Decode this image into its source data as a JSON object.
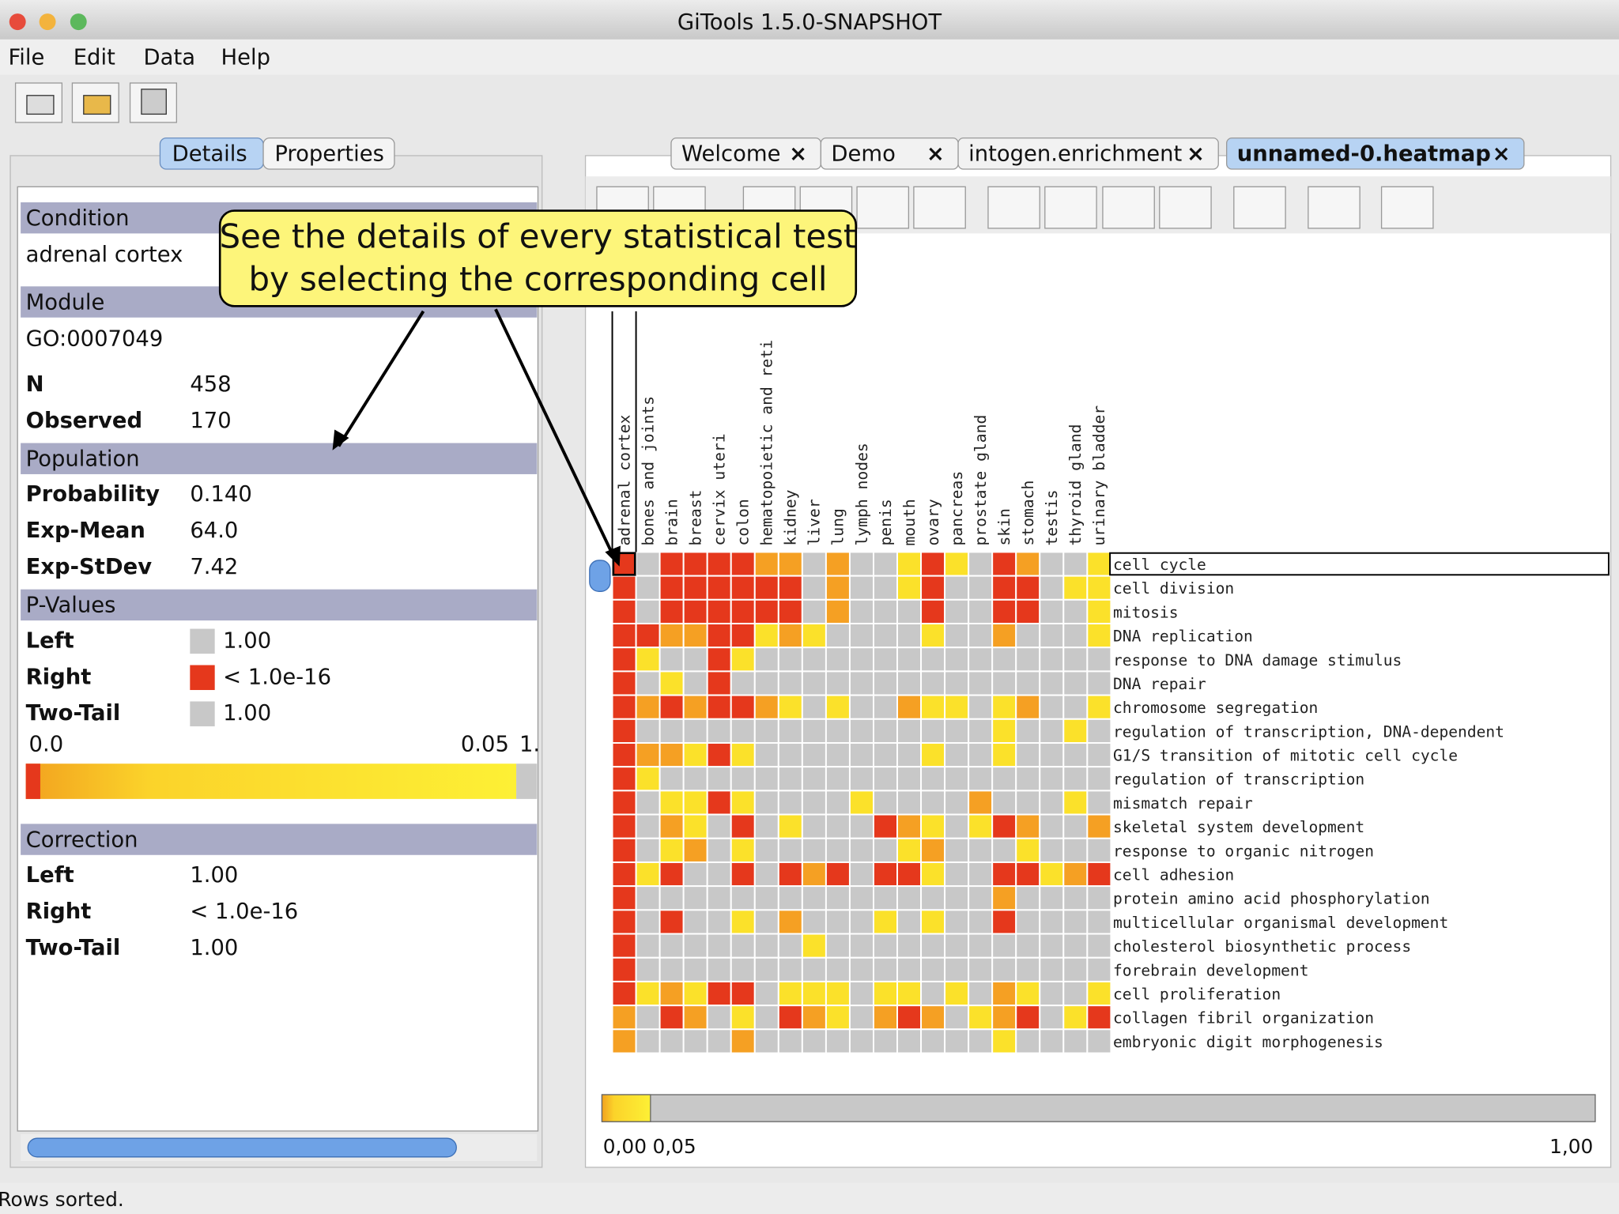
{
  "window": {
    "title": "GiTools 1.5.0-SNAPSHOT",
    "menu": [
      "File",
      "Edit",
      "Data",
      "Help"
    ],
    "status": "Rows sorted."
  },
  "sidebar": {
    "tabs": [
      "Details",
      "Properties"
    ],
    "sections": [
      {
        "title": "Condition",
        "text": "adrenal cortex",
        "rows": []
      },
      {
        "title": "Module",
        "text": "GO:0007049",
        "rows": [
          [
            "N",
            "458"
          ],
          [
            "Observed",
            "170"
          ]
        ]
      },
      {
        "title": "Population",
        "rows": [
          [
            "Probability",
            "0.140"
          ],
          [
            "Exp-Mean",
            "64.0"
          ],
          [
            "Exp-StDev",
            "7.42"
          ]
        ]
      },
      {
        "title": "P-Values",
        "rows": [
          [
            "Left",
            "1.00"
          ],
          [
            "Right",
            "< 1.0e-16"
          ],
          [
            "Two-Tail",
            "1.00"
          ]
        ],
        "swatches": [
          0,
          3,
          0
        ],
        "scale_labels": [
          "0.0",
          "0.05",
          "1."
        ]
      },
      {
        "title": "Correction",
        "rows": [
          [
            "Left",
            "1.00"
          ],
          [
            "Right",
            "< 1.0e-16"
          ],
          [
            "Two-Tail",
            "1.00"
          ]
        ]
      }
    ]
  },
  "editor_tabs": [
    "Welcome",
    "Demo",
    "intogen.enrichment",
    "unnamed-0.heatmap"
  ],
  "callout": [
    "See the details of every statistical test",
    "by selecting the corresponding cell"
  ],
  "heatmap": {
    "level_colors": [
      "#c8c8c8",
      "#fbe12a",
      "#f5a023",
      "#e5381c"
    ],
    "columns": [
      "adrenal cortex",
      "bones and joints",
      "brain",
      "breast",
      "cervix uteri",
      "colon",
      "hematopoietic and reti",
      "kidney",
      "liver",
      "lung",
      "lymph nodes",
      "penis",
      "mouth",
      "ovary",
      "pancreas",
      "prostate gland",
      "skin",
      "stomach",
      "testis",
      "thyroid gland",
      "urinary bladder"
    ],
    "rows": [
      "cell cycle",
      "cell division",
      "mitosis",
      "DNA replication",
      "response to DNA damage stimulus",
      "DNA repair",
      "chromosome segregation",
      "regulation of transcription, DNA-dependent",
      "G1/S transition of mitotic cell cycle",
      "regulation of transcription",
      "mismatch repair",
      "skeletal system development",
      "response to organic nitrogen",
      "cell adhesion",
      "protein amino acid phosphorylation",
      "multicellular organismal development",
      "cholesterol biosynthetic process",
      "forebrain development",
      "cell proliferation",
      "collagen fibril organization",
      "embryonic digit morphogenesis"
    ],
    "cells": [
      [
        3,
        0,
        3,
        3,
        3,
        3,
        2,
        2,
        0,
        2,
        0,
        0,
        1,
        3,
        1,
        0,
        3,
        2,
        0,
        0,
        1
      ],
      [
        3,
        0,
        3,
        3,
        3,
        3,
        3,
        3,
        0,
        2,
        0,
        0,
        1,
        3,
        0,
        0,
        3,
        3,
        0,
        1,
        1
      ],
      [
        3,
        0,
        3,
        3,
        3,
        3,
        3,
        3,
        0,
        2,
        0,
        0,
        0,
        3,
        0,
        0,
        3,
        3,
        0,
        0,
        1
      ],
      [
        3,
        3,
        2,
        2,
        3,
        3,
        1,
        2,
        1,
        0,
        0,
        0,
        0,
        1,
        0,
        0,
        2,
        0,
        0,
        0,
        1
      ],
      [
        3,
        1,
        0,
        0,
        3,
        1,
        0,
        0,
        0,
        0,
        0,
        0,
        0,
        0,
        0,
        0,
        0,
        0,
        0,
        0,
        0
      ],
      [
        3,
        0,
        1,
        0,
        3,
        0,
        0,
        0,
        0,
        0,
        0,
        0,
        0,
        0,
        0,
        0,
        0,
        0,
        0,
        0,
        0
      ],
      [
        3,
        2,
        3,
        2,
        3,
        3,
        2,
        1,
        0,
        1,
        0,
        0,
        2,
        1,
        1,
        0,
        1,
        2,
        0,
        0,
        1
      ],
      [
        3,
        0,
        0,
        0,
        0,
        0,
        0,
        0,
        0,
        0,
        0,
        0,
        0,
        0,
        0,
        0,
        1,
        0,
        0,
        1,
        0
      ],
      [
        3,
        2,
        2,
        1,
        3,
        1,
        0,
        0,
        0,
        0,
        0,
        0,
        0,
        1,
        0,
        0,
        1,
        0,
        0,
        0,
        0
      ],
      [
        3,
        1,
        0,
        0,
        0,
        0,
        0,
        0,
        0,
        0,
        0,
        0,
        0,
        0,
        0,
        0,
        0,
        0,
        0,
        0,
        0
      ],
      [
        3,
        0,
        1,
        1,
        3,
        1,
        0,
        0,
        0,
        0,
        1,
        0,
        0,
        0,
        0,
        2,
        0,
        0,
        0,
        1,
        0
      ],
      [
        3,
        0,
        2,
        1,
        0,
        3,
        0,
        1,
        0,
        0,
        0,
        3,
        2,
        1,
        0,
        1,
        3,
        2,
        0,
        0,
        2
      ],
      [
        3,
        0,
        1,
        2,
        0,
        1,
        0,
        0,
        0,
        0,
        0,
        0,
        1,
        2,
        0,
        0,
        0,
        1,
        0,
        0,
        0
      ],
      [
        3,
        1,
        3,
        0,
        0,
        3,
        0,
        3,
        2,
        3,
        0,
        3,
        3,
        1,
        0,
        0,
        3,
        3,
        1,
        2,
        3
      ],
      [
        3,
        0,
        0,
        0,
        0,
        0,
        0,
        0,
        0,
        0,
        0,
        0,
        0,
        0,
        0,
        0,
        2,
        0,
        0,
        0,
        0
      ],
      [
        3,
        0,
        3,
        0,
        0,
        1,
        0,
        2,
        0,
        0,
        0,
        1,
        0,
        1,
        0,
        0,
        3,
        0,
        0,
        0,
        0
      ],
      [
        3,
        0,
        0,
        0,
        0,
        0,
        0,
        0,
        1,
        0,
        0,
        0,
        0,
        0,
        0,
        0,
        0,
        0,
        0,
        0,
        0
      ],
      [
        3,
        0,
        0,
        0,
        0,
        0,
        0,
        0,
        0,
        0,
        0,
        0,
        0,
        0,
        0,
        0,
        0,
        0,
        0,
        0,
        0
      ],
      [
        3,
        1,
        2,
        1,
        3,
        3,
        0,
        1,
        1,
        1,
        0,
        1,
        1,
        0,
        1,
        0,
        2,
        1,
        0,
        0,
        1
      ],
      [
        2,
        0,
        3,
        2,
        0,
        1,
        0,
        3,
        2,
        1,
        0,
        2,
        3,
        2,
        0,
        1,
        2,
        3,
        0,
        1,
        3
      ],
      [
        2,
        0,
        0,
        0,
        0,
        2,
        0,
        0,
        0,
        0,
        0,
        0,
        0,
        0,
        0,
        0,
        1,
        0,
        0,
        0,
        0
      ]
    ],
    "scale_labels": [
      "0,00",
      "0,05",
      "1,00"
    ]
  }
}
